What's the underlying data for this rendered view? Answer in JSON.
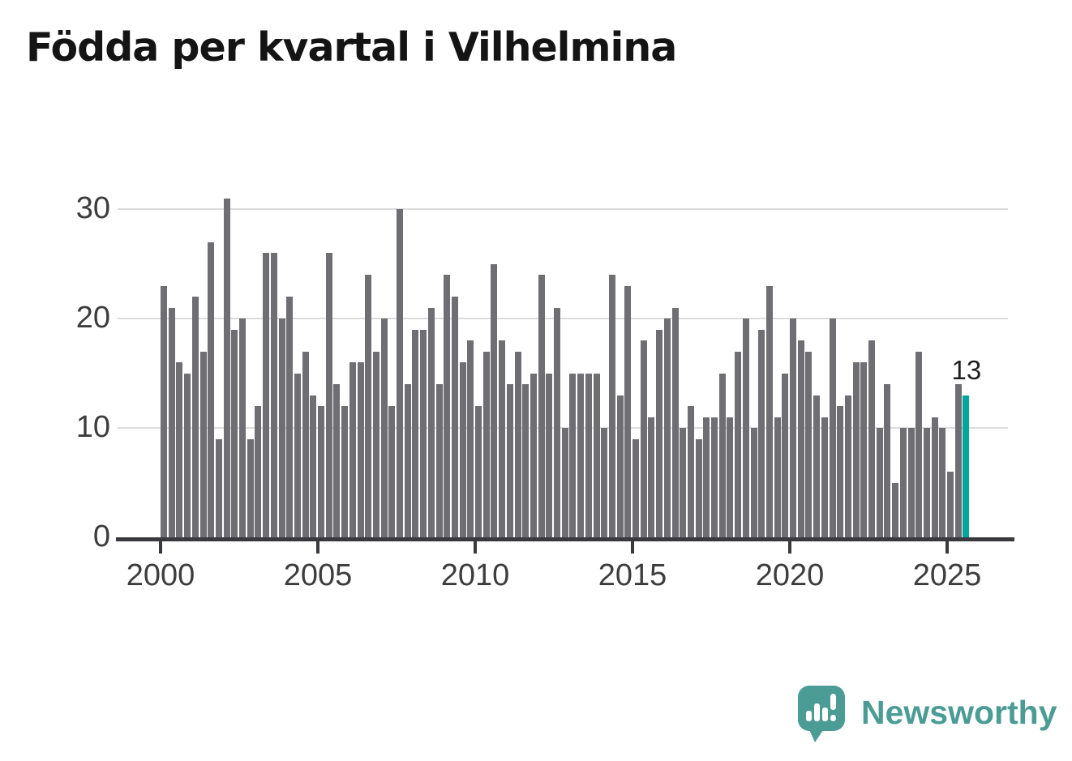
{
  "chart_data": {
    "type": "bar",
    "title": "Födda per kvartal i Vilhelmina",
    "xlabel": "",
    "ylabel": "",
    "frequency": "quarterly",
    "x_start": "2000-Q1",
    "x_end": "2025-Q3",
    "values": [
      23,
      21,
      16,
      15,
      22,
      17,
      27,
      9,
      31,
      19,
      20,
      9,
      12,
      26,
      26,
      20,
      22,
      15,
      17,
      13,
      12,
      26,
      14,
      12,
      16,
      16,
      24,
      17,
      20,
      12,
      30,
      14,
      19,
      19,
      21,
      14,
      24,
      22,
      16,
      18,
      12,
      17,
      25,
      18,
      14,
      17,
      14,
      15,
      24,
      15,
      21,
      10,
      15,
      15,
      15,
      15,
      10,
      24,
      13,
      23,
      9,
      18,
      11,
      19,
      20,
      21,
      10,
      12,
      9,
      11,
      11,
      15,
      11,
      17,
      20,
      10,
      19,
      23,
      11,
      15,
      20,
      18,
      17,
      13,
      11,
      20,
      12,
      13,
      16,
      16,
      18,
      10,
      14,
      5,
      10,
      10,
      17,
      10,
      11,
      10,
      6,
      14,
      13
    ],
    "highlight_last": true,
    "last_value_label": "13",
    "yticks": [
      0,
      10,
      20,
      30
    ],
    "ylim": [
      0,
      31
    ],
    "xticks_years": [
      2000,
      2005,
      2010,
      2015,
      2020,
      2025
    ],
    "grid": "horizontal",
    "legend": "none",
    "bar_color": "#6e6e73",
    "highlight_color": "#00a79b",
    "axis_color": "#3a3a3e",
    "gridline_color": "#dcdcdc",
    "tick_label_color": "#3d3d3d"
  },
  "logo": {
    "text": "Newsworthy",
    "color": "#4c9c96"
  }
}
